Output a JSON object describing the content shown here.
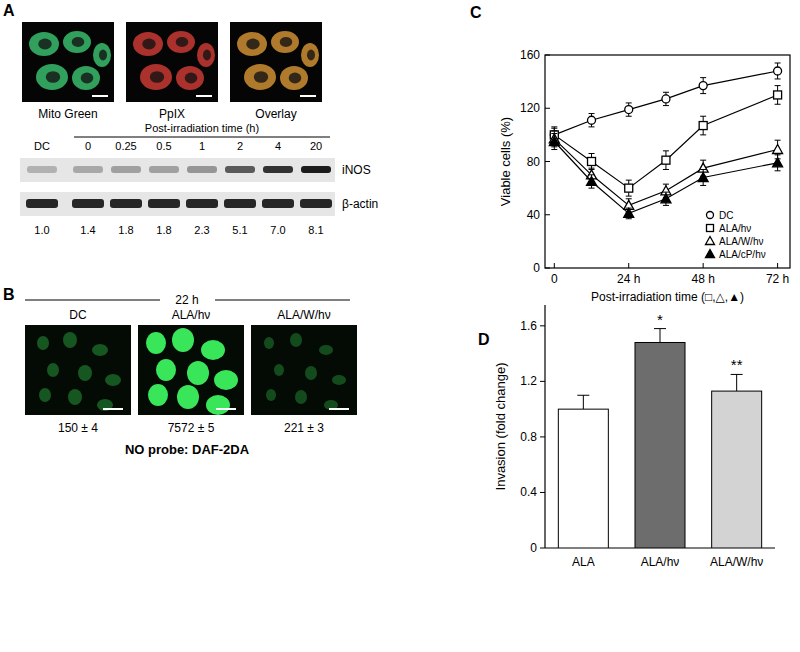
{
  "panel_a": {
    "label": "A",
    "images": [
      "Mito Green",
      "PpIX",
      "Overlay"
    ],
    "control_lane": "DC",
    "time_axis_label": "Post-irradiation time (h)",
    "times": [
      "0",
      "0.25",
      "0.5",
      "1",
      "2",
      "4",
      "20"
    ],
    "bands": [
      "iNOS",
      "β-actin"
    ],
    "densities": [
      "1.0",
      "1.4",
      "1.8",
      "1.8",
      "2.3",
      "5.1",
      "7.0",
      "8.1"
    ]
  },
  "panel_b": {
    "label": "B",
    "time": "22 h",
    "images": [
      {
        "label": "DC",
        "value": "150 ± 4"
      },
      {
        "label": "ALA/hν",
        "value": "7572 ± 5"
      },
      {
        "label": "ALA/W/hν",
        "value": "221 ± 3"
      }
    ],
    "probe": "NO probe: DAF-2DA"
  },
  "chart_data": [
    {
      "type": "line",
      "title": "C",
      "x_label": "Post-irradiation time (□,△,▲)",
      "y_label": "Viable cells (%)",
      "x": [
        0,
        12,
        24,
        36,
        48,
        72
      ],
      "xlim": [
        -3,
        76
      ],
      "xticks": [
        0,
        {
          "value": 24,
          "label": "24 h"
        },
        {
          "value": 48,
          "label": "48 h"
        },
        {
          "value": 72,
          "label": "72 h"
        }
      ],
      "ylim": [
        0,
        160
      ],
      "yticks": [
        0,
        40,
        80,
        120,
        160
      ],
      "legend": "lower right",
      "series": [
        {
          "name": "DC",
          "marker": "circle-open",
          "values": [
            100,
            111,
            119,
            127,
            137,
            148
          ],
          "errors": [
            5,
            5,
            5,
            5,
            6,
            6
          ]
        },
        {
          "name": "ALA/hν",
          "marker": "square-open",
          "values": [
            100,
            80,
            60,
            81,
            107,
            130
          ],
          "errors": [
            6,
            6,
            6,
            7,
            7,
            7
          ]
        },
        {
          "name": "ALA/W/hν",
          "marker": "triangle-open",
          "values": [
            97,
            70,
            47,
            58,
            75,
            89
          ],
          "errors": [
            6,
            5,
            5,
            5,
            6,
            7
          ]
        },
        {
          "name": "ALA/cP/hν",
          "marker": "triangle-filled",
          "values": [
            95,
            65,
            41,
            52,
            68,
            79
          ],
          "errors": [
            6,
            5,
            4,
            5,
            6,
            6
          ]
        }
      ]
    },
    {
      "type": "bar",
      "title": "D",
      "y_label": "Invasion (fold change)",
      "categories": [
        "ALA",
        "ALA/hν",
        "ALA/W/hν"
      ],
      "values": [
        1.0,
        1.48,
        1.13
      ],
      "errors": [
        0.1,
        0.1,
        0.12
      ],
      "colors": [
        "#ffffff",
        "#6d6d6d",
        "#d3d3d3"
      ],
      "annotations": [
        {
          "category": "ALA/hν",
          "text": "*"
        },
        {
          "category": "ALA/W/hν",
          "text": "**"
        }
      ],
      "ylim": [
        0,
        1.75
      ],
      "yticks": [
        0,
        0.4,
        0.8,
        1.2,
        1.6
      ]
    }
  ]
}
